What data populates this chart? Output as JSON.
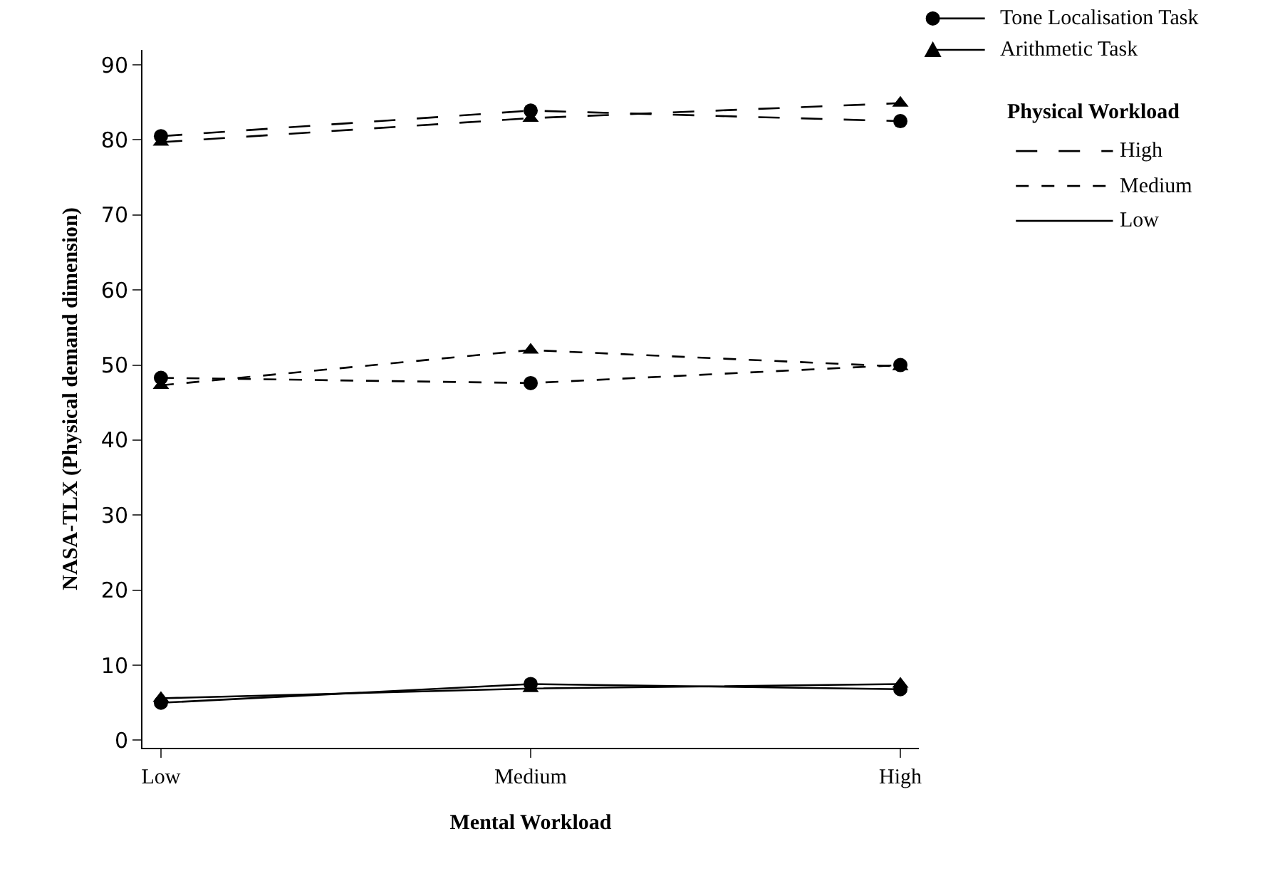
{
  "chart_data": {
    "type": "line",
    "xlabel": "Mental Workload",
    "ylabel": "NASA-TLX (Physical demand dimension)",
    "legend_title": "Physical Workload",
    "categories": [
      "Low",
      "Medium",
      "High"
    ],
    "series": [
      {
        "color": "#000000",
        "marker": "circle",
        "line_style": "dashed",
        "values": [
          80.5,
          83.9,
          82.5
        ]
      },
      {
        "color": "#000000",
        "marker": "triangle",
        "line_style": "dashed",
        "values": [
          79.7,
          82.9,
          84.9
        ]
      },
      {
        "color": "#000000",
        "marker": "circle",
        "line_style": "dotted",
        "values": [
          48.3,
          47.6,
          50.0
        ]
      },
      {
        "color": "#000000",
        "marker": "triangle",
        "line_style": "dotted",
        "values": [
          47.3,
          52.0,
          49.8
        ]
      },
      {
        "color": "#000000",
        "marker": "circle",
        "line_style": "solid",
        "values": [
          5.0,
          7.5,
          6.8
        ]
      },
      {
        "color": "#000000",
        "marker": "triangle",
        "line_style": "solid",
        "values": [
          5.6,
          6.9,
          7.5
        ]
      }
    ],
    "annotations": [
      "Tone Localisation Task",
      "Arithmetic Task",
      "High",
      "Medium",
      "Low"
    ],
    "ylim": [
      -1,
      92
    ],
    "yticks": [
      0,
      10,
      20,
      30,
      40,
      50,
      60,
      70,
      80,
      90
    ],
    "grid": false
  }
}
